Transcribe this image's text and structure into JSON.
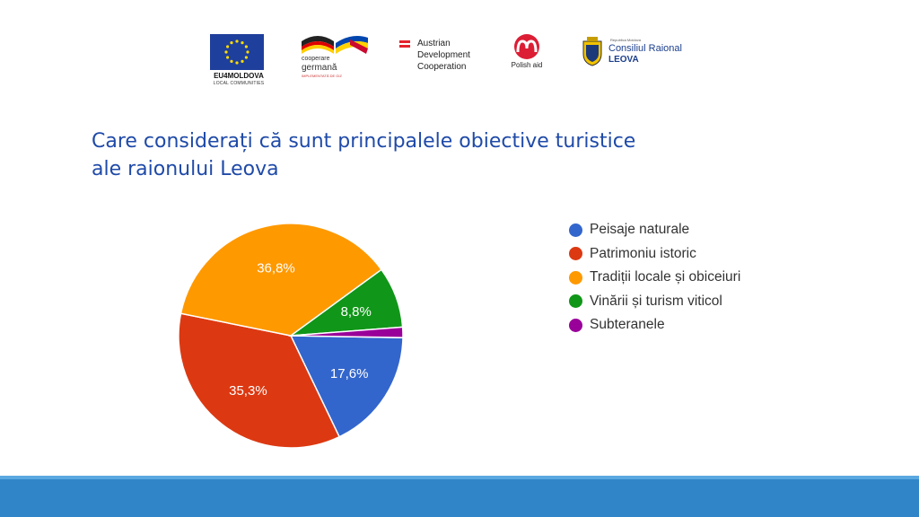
{
  "logos": {
    "eu": {
      "line1": "EU4MOLDOVA",
      "line2": "LOCAL COMMUNITIES"
    },
    "german": {
      "line1": "cooperare",
      "line2": "germană",
      "line3": "IMPLEMENTATĂ DE GIZ"
    },
    "austrian": {
      "line1": "Austrian",
      "line2": "Development",
      "line3": "Cooperation"
    },
    "polish": {
      "label": "Polish aid"
    },
    "leova": {
      "small": "Republica Moldova",
      "line1": "Consiliul Raional",
      "line2": "LEOVA"
    }
  },
  "slide": {
    "title_line1": "Care considerați că sunt principalele obiective turistice",
    "title_line2": "ale raionului Leova"
  },
  "colors": {
    "blue": "#3366cc",
    "red": "#dc3912",
    "orange": "#ff9900",
    "green": "#109618",
    "purple": "#990099",
    "band": "#2f85c8"
  },
  "chart_data": {
    "type": "pie",
    "title": "",
    "legend_position": "right",
    "slices": [
      {
        "label": "Peisaje naturale",
        "value": 17.6,
        "display": "17,6%",
        "color": "#3366cc"
      },
      {
        "label": "Patrimoniu istoric",
        "value": 35.3,
        "display": "35,3%",
        "color": "#dc3912"
      },
      {
        "label": "Tradiții locale și obiceiuri",
        "value": 36.8,
        "display": "36,8%",
        "color": "#ff9900"
      },
      {
        "label": "Vinării și turism viticol",
        "value": 8.8,
        "display": "8,8%",
        "color": "#109618"
      },
      {
        "label": "Subteranele",
        "value": 1.5,
        "display": "",
        "color": "#990099"
      }
    ]
  }
}
